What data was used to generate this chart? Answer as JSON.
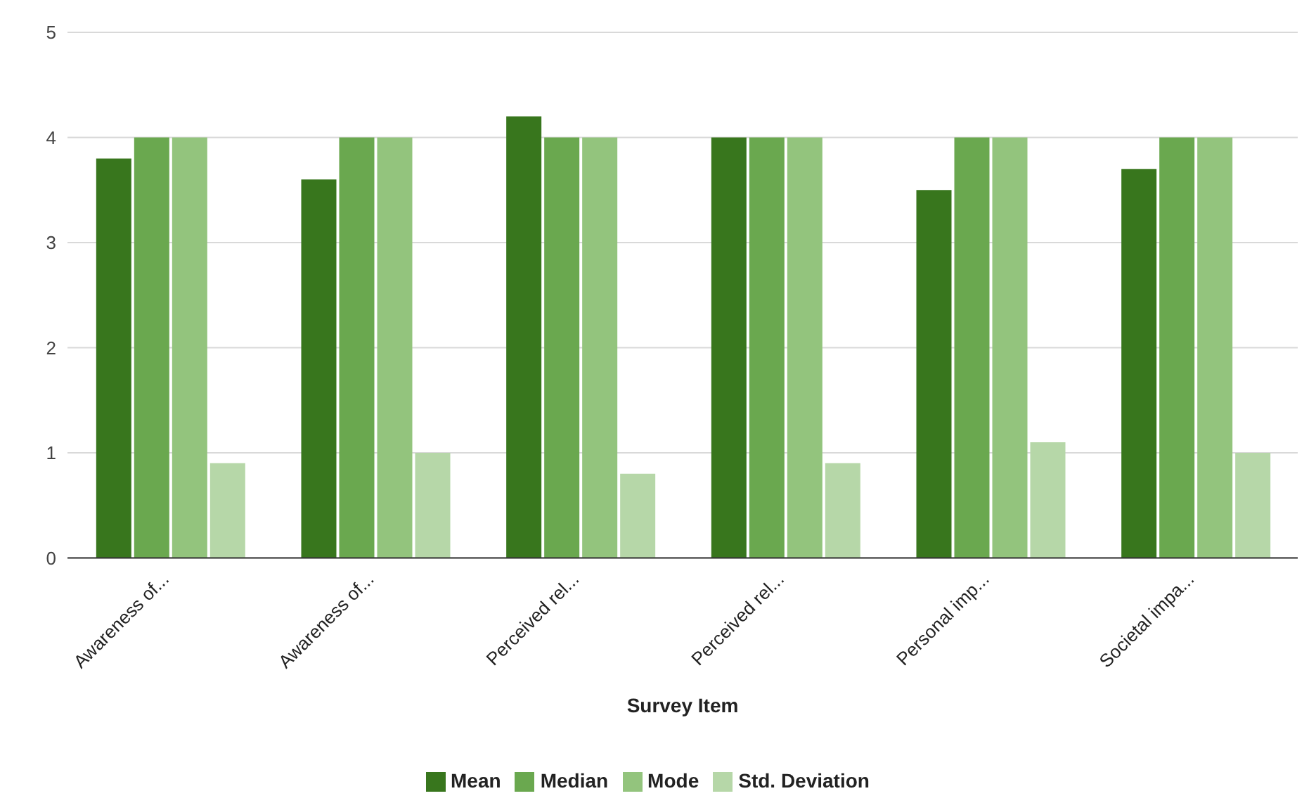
{
  "chart_data": {
    "type": "bar",
    "xlabel": "Survey Item",
    "categories": [
      "Awareness of...",
      "Awareness of...",
      "Perceived rel...",
      "Perceived rel...",
      "Personal imp...",
      "Societal impa..."
    ],
    "series": [
      {
        "name": "Mean",
        "color": "#38761d",
        "values": [
          3.8,
          3.6,
          4.2,
          4.0,
          3.5,
          3.7
        ]
      },
      {
        "name": "Median",
        "color": "#6aa84f",
        "values": [
          4,
          4,
          4,
          4,
          4,
          4
        ]
      },
      {
        "name": "Mode",
        "color": "#93c47d",
        "values": [
          4,
          4,
          4,
          4,
          4,
          4
        ]
      },
      {
        "name": "Std. Deviation",
        "color": "#b6d7a8",
        "values": [
          0.9,
          1.0,
          0.8,
          0.9,
          1.1,
          1.0
        ]
      }
    ],
    "ylim": [
      0,
      5
    ],
    "yticks": [
      0,
      1,
      2,
      3,
      4,
      5
    ],
    "grid": "y",
    "legend": "bottom"
  }
}
